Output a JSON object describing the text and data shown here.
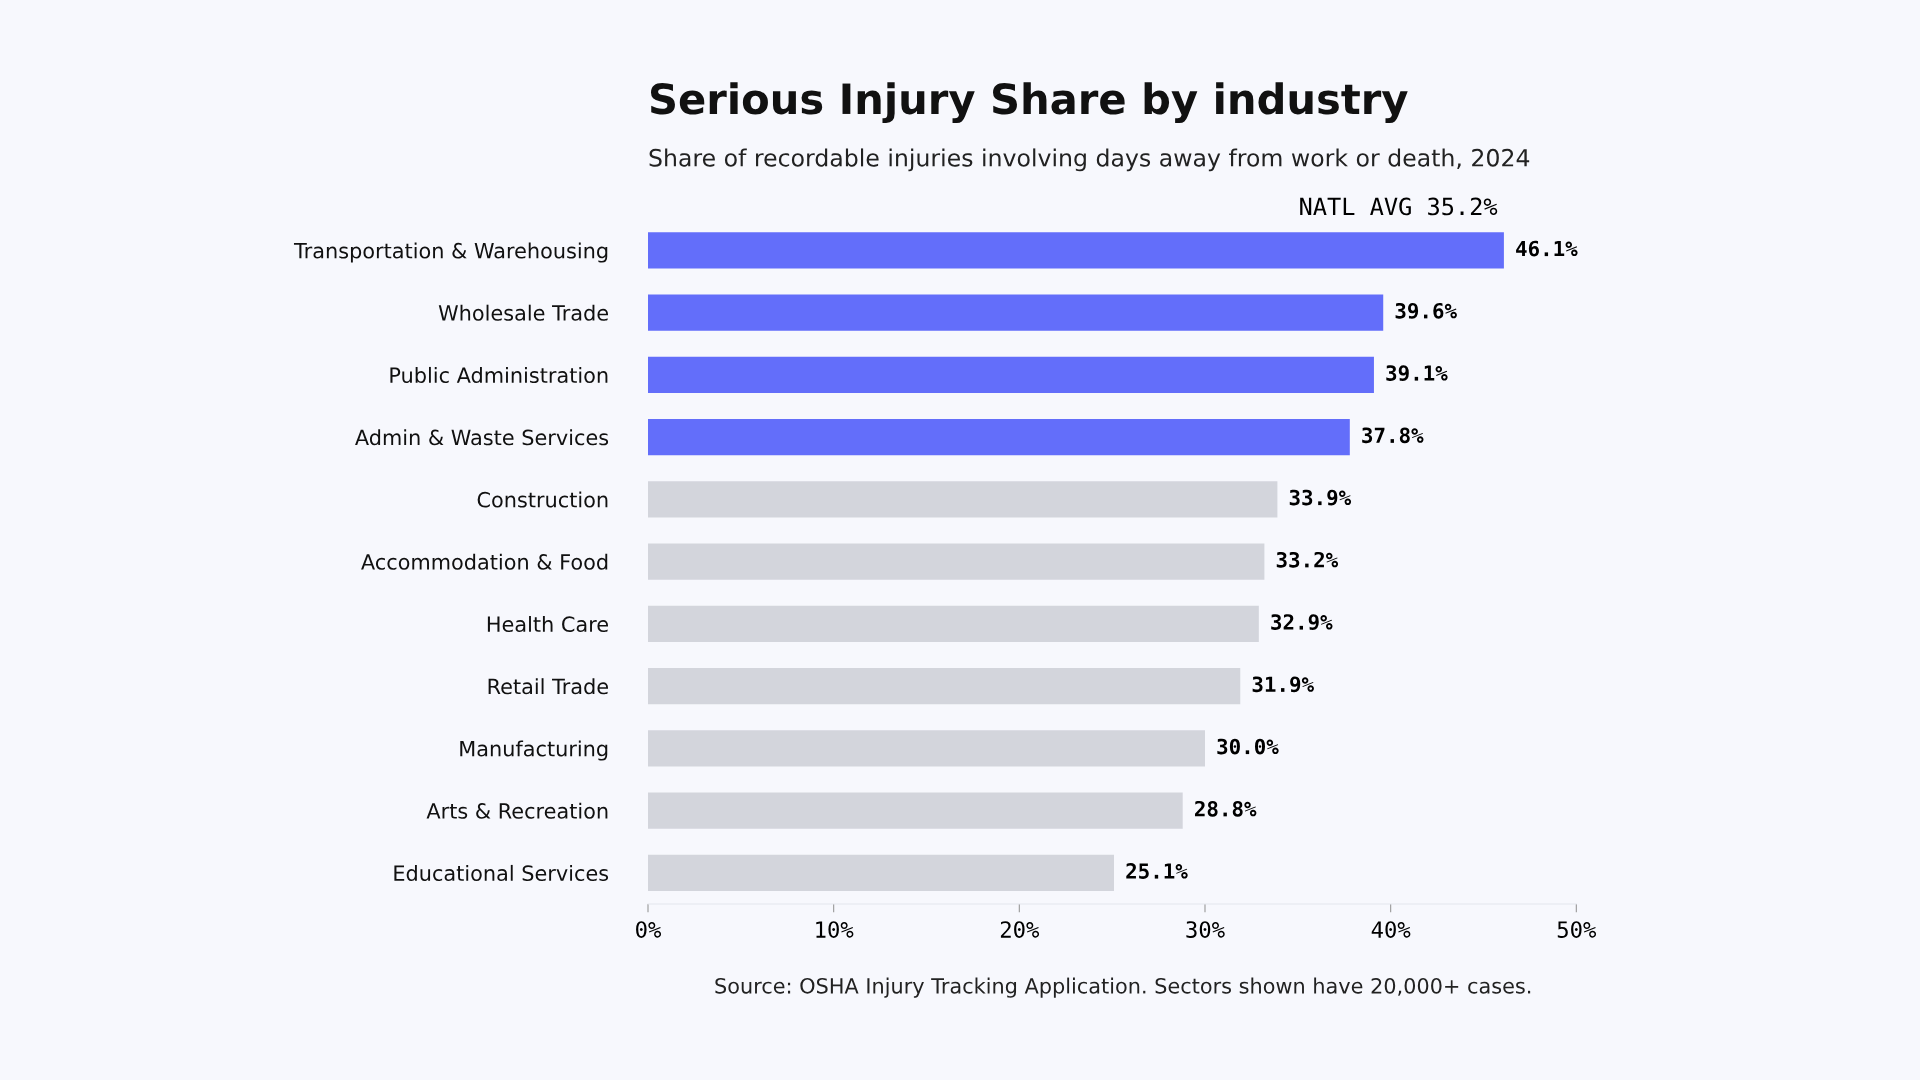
{
  "chart_data": {
    "type": "bar",
    "orientation": "horizontal",
    "title": "Serious Injury Share by industry",
    "subtitle": "Share of recordable injuries involving days away from work or death, 2024",
    "categories": [
      "Transportation & Warehousing",
      "Wholesale Trade",
      "Public Administration",
      "Admin & Waste Services",
      "Construction",
      "Accommodation & Food",
      "Health Care",
      "Retail Trade",
      "Manufacturing",
      "Arts & Recreation",
      "Educational Services"
    ],
    "values": [
      46.1,
      39.6,
      39.1,
      37.8,
      33.9,
      33.2,
      32.9,
      31.9,
      30.0,
      28.8,
      25.1
    ],
    "value_labels": [
      "46.1%",
      "39.6%",
      "39.1%",
      "37.8%",
      "33.9%",
      "33.2%",
      "32.9%",
      "31.9%",
      "30.0%",
      "28.8%",
      "25.1%"
    ],
    "colors": [
      "#636efa",
      "#636efa",
      "#636efa",
      "#636efa",
      "#d3d5dc",
      "#d3d5dc",
      "#d3d5dc",
      "#d3d5dc",
      "#d3d5dc",
      "#d3d5dc",
      "#d3d5dc"
    ],
    "xlim": [
      0,
      50
    ],
    "xticks": [
      {
        "value": 0,
        "label": "0%"
      },
      {
        "value": 10,
        "label": "10%"
      },
      {
        "value": 20,
        "label": "20%"
      },
      {
        "value": 30,
        "label": "30%"
      },
      {
        "value": 40,
        "label": "40%"
      },
      {
        "value": 50,
        "label": "50%"
      }
    ],
    "grid": false,
    "legend": false,
    "annotations": [
      "NATL AVG 35.2%",
      "Source: OSHA Injury Tracking Application. Sectors shown have 20,000+ cases."
    ]
  }
}
